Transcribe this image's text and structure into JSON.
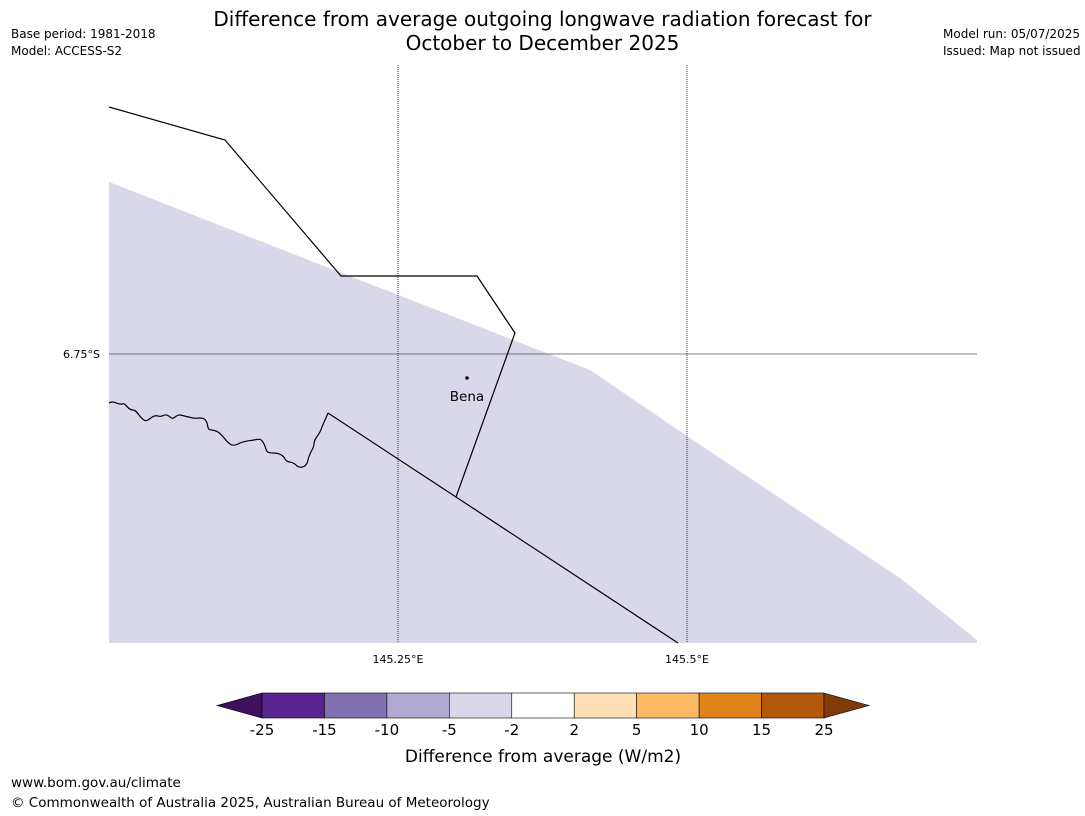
{
  "title": {
    "line1": "Difference from average outgoing longwave radiation forecast for",
    "line2": "October to December 2025"
  },
  "meta_left": {
    "base_period": "Base period: 1981-2018",
    "model": "Model: ACCESS-S2"
  },
  "meta_right": {
    "model_run": "Model run: 05/07/2025",
    "issued": "Issued: Map not issued"
  },
  "map": {
    "lat_label": "6.75°S",
    "lon_labels": [
      "145.25°E",
      "145.5°E"
    ],
    "place": "Bena",
    "shaded_category": "-5 to -2",
    "shade_color": "#d8d8ea"
  },
  "colorbar": {
    "ticks": [
      "-25",
      "-15",
      "-10",
      "-5",
      "-2",
      "2",
      "5",
      "10",
      "15",
      "25"
    ],
    "colors": [
      "#3f0f5c",
      "#5a2490",
      "#8271b2",
      "#b1a9d2",
      "#d8d8ea",
      "#ffffff",
      "#fee0b4",
      "#fcb863",
      "#e08318",
      "#b35708",
      "#7f3b08"
    ],
    "label": "Difference from average (W/m2)"
  },
  "footer": {
    "url": "www.bom.gov.au/climate",
    "copyright": "© Commonwealth of Australia 2025, Australian Bureau of Meteorology"
  }
}
